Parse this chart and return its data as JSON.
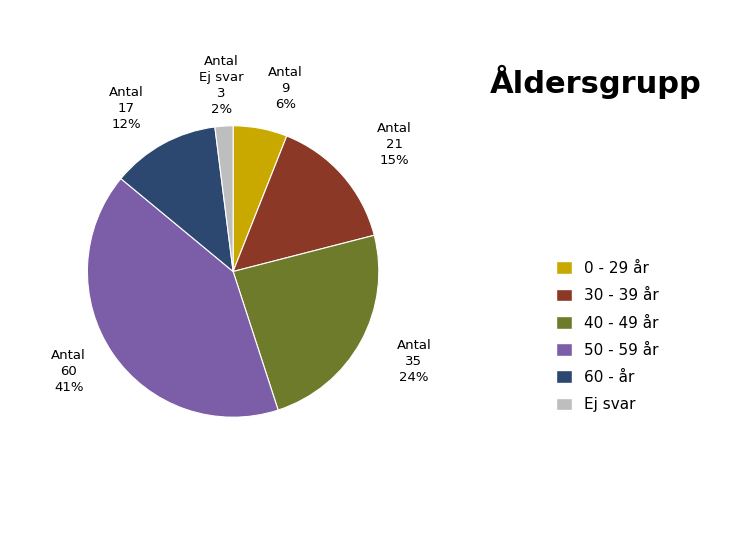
{
  "title": "Åldersgrupp",
  "slices": [
    {
      "label": "0 - 29 år",
      "count": 9,
      "pct": 6,
      "color": "#C9A800"
    },
    {
      "label": "30 - 39 år",
      "count": 21,
      "pct": 15,
      "color": "#8B3826"
    },
    {
      "label": "40 - 49 år",
      "count": 35,
      "pct": 24,
      "color": "#6E7B2A"
    },
    {
      "label": "50 - 59 år",
      "count": 60,
      "pct": 41,
      "color": "#7B5EA7"
    },
    {
      "label": "60 - år",
      "count": 17,
      "pct": 12,
      "color": "#2C4770"
    },
    {
      "label": "Ej svar",
      "count": 3,
      "pct": 2,
      "color": "#BEBEBE"
    }
  ],
  "pie_label_texts": [
    "Antal\n9\n6%",
    "Antal\n21\n15%",
    "Antal\n35\n24%",
    "Antal\n60\n41%",
    "Antal\n17\n12%",
    "Antal\nEj svar\n3\n2%"
  ],
  "startangle": 90,
  "background_color": "#FFFFFF",
  "title_fontsize": 22,
  "legend_fontsize": 11,
  "label_fontsize": 9.5
}
